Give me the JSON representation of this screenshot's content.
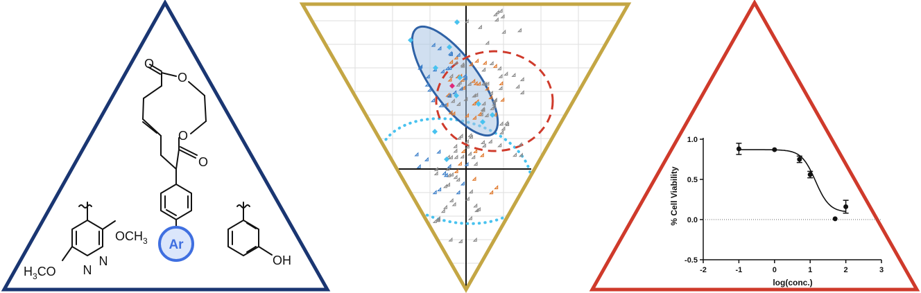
{
  "colors": {
    "left_triangle": "#1a3672",
    "middle_triangle": "#c4a644",
    "right_triangle": "#cf3a2b",
    "ar_circle": "#3f6fe0",
    "ar_fill": "#dbe6fb",
    "blue_points": "#3a7ec9",
    "orange_points": "#e0782b",
    "gray_points": "#8b8b8b",
    "cyan_points": "#48c2ef",
    "magenta_point": "#e0287a",
    "blue_ellipse": "#2f62a6",
    "red_dashed": "#cf3a2b",
    "cyan_dotted": "#48c2ef"
  },
  "chemistry": {
    "ar_label": "Ar",
    "substituent_left": {
      "och3_right": "OCH",
      "och3_right_sub": "3",
      "och3_left_h": "H",
      "och3_left_sub": "3",
      "och3_left_rest": "CO",
      "n_left": "N",
      "n_right": "N"
    },
    "substituent_right": {
      "oh": "OH"
    },
    "ring_o_top": "O",
    "ring_o_mid": "O",
    "carbonyl_o_top": "O",
    "carbonyl_o_bottom": "O"
  },
  "chart_data": {
    "type": "scatter",
    "xlabel": "log(conc.)",
    "ylabel": "% Cell Viability",
    "xlim": [
      -2,
      3
    ],
    "ylim": [
      -0.5,
      1.0
    ],
    "x_ticks": [
      "-2",
      "-1",
      "0",
      "1",
      "2",
      "3"
    ],
    "y_ticks": [
      "-0.5",
      "0.0",
      "0.5",
      "1.0"
    ],
    "points": [
      {
        "x": -1.0,
        "y": 0.88,
        "err": 0.07
      },
      {
        "x": 0.0,
        "y": 0.87,
        "err": 0.0
      },
      {
        "x": 0.7,
        "y": 0.75,
        "err": 0.04
      },
      {
        "x": 1.0,
        "y": 0.56,
        "err": 0.04
      },
      {
        "x": 1.7,
        "y": 0.01,
        "err": 0.0
      },
      {
        "x": 2.0,
        "y": 0.16,
        "err": 0.08
      }
    ],
    "fit": {
      "top": 0.87,
      "bottom": 0.09,
      "log_ic50": 1.15,
      "hill": 2.2
    },
    "baseline_dotted_y": 0.0
  }
}
